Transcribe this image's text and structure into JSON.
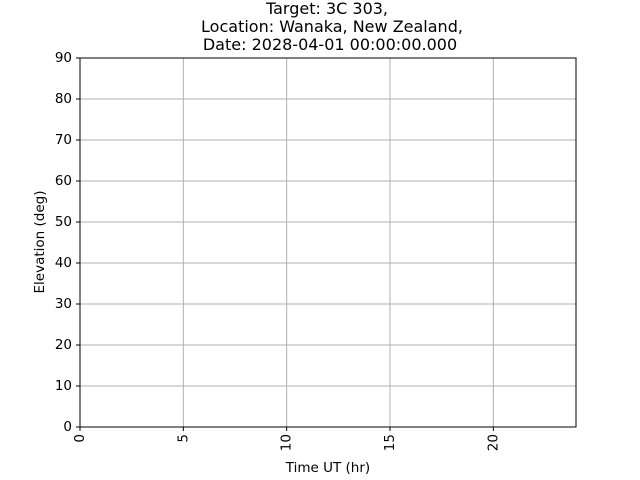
{
  "chart_data": {
    "type": "line",
    "title_lines": [
      "Target: 3C 303,",
      "Location: Wanaka, New Zealand,",
      "Date: 2028-04-01 00:00:00.000"
    ],
    "xlabel": "Time UT (hr)",
    "ylabel": "Elevation (deg)",
    "xlim": [
      0,
      24
    ],
    "ylim": [
      0,
      90
    ],
    "x_ticks": [
      0,
      5,
      10,
      15,
      20
    ],
    "y_ticks": [
      0,
      10,
      20,
      30,
      40,
      50,
      60,
      70,
      80,
      90
    ],
    "x_tick_rotation": "vertical",
    "grid": true,
    "series": []
  },
  "colors": {
    "grid": "#b0b0b0",
    "axes": "#000000",
    "background": "#ffffff"
  }
}
